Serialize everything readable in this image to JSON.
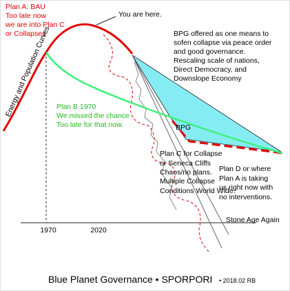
{
  "plan_a": {
    "lines": [
      "Plan A: BAU",
      "Too late now",
      "we are into Plan C",
      "or Collapses"
    ]
  },
  "you_are_here": "You are here.",
  "bpg_note": {
    "lines": [
      "BPG offered as one means to",
      "sofen collapse via peace order",
      "and good governance.",
      "Rescaling scale of nations,",
      "Direct Democracy, and",
      "Downslope Economy"
    ]
  },
  "axis_label": "Energy and Population Curves",
  "plan_b": {
    "lines": [
      "Plan B 1970",
      "We missed the chance",
      "Too late for that now."
    ]
  },
  "bpg_label": "BPG",
  "plan_c": {
    "lines": [
      "Plan C for Collapse",
      "or Seneca Cliffs",
      "Chaos/no plans.",
      "Multiple Collapse",
      "Conditions World Wide."
    ]
  },
  "plan_d": {
    "lines": [
      "Plan D or where",
      "Plan A is taking",
      "us right now with",
      "no interventions."
    ]
  },
  "stone_age": "Stone Age Again",
  "x_labels": [
    "1970",
    "2020"
  ],
  "footer": {
    "title": "Blue Planet Governance  • SPORPORI",
    "date": "• 2018.02  RB"
  }
}
